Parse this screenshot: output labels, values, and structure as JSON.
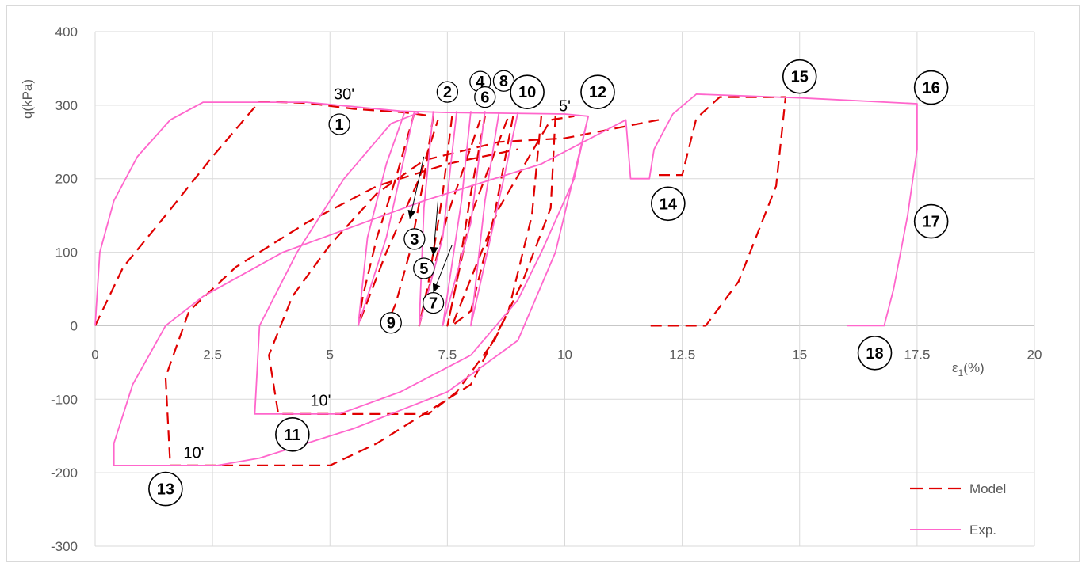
{
  "chart_data": {
    "type": "line",
    "title": "",
    "xlabel": "ε1(%)",
    "ylabel": "q(kPa)",
    "xlim": [
      0,
      20
    ],
    "ylim": [
      -300,
      400
    ],
    "x_ticks": [
      0,
      2.5,
      5,
      7.5,
      10,
      12.5,
      15,
      17.5,
      20
    ],
    "x_tick_labels": [
      "0",
      "2.5",
      "5",
      "7.5",
      "10",
      "12.5",
      "15",
      "17.5",
      "20"
    ],
    "y_ticks": [
      -300,
      -200,
      -100,
      0,
      100,
      200,
      300,
      400
    ],
    "y_tick_labels": [
      "-300",
      "-200",
      "-100",
      "0",
      "100",
      "200",
      "300",
      "400"
    ],
    "grid": true,
    "legend_position": "bottom-right",
    "series": [
      {
        "name": "Model",
        "color": "#e00000",
        "dash": "dashed",
        "segments": [
          [
            [
              0,
              0
            ],
            [
              0.6,
              80
            ],
            [
              1.5,
              150
            ],
            [
              2.5,
              230
            ],
            [
              3.5,
              305
            ],
            [
              4.5,
              303
            ],
            [
              5.5,
              295
            ],
            [
              6.6,
              290
            ],
            [
              7.2,
              285
            ]
          ],
          [
            [
              6.8,
              290
            ],
            [
              6.4,
              200
            ],
            [
              6.0,
              120
            ],
            [
              5.7,
              40
            ],
            [
              5.6,
              0
            ],
            [
              6.2,
              100
            ],
            [
              6.9,
              200
            ],
            [
              7.3,
              280
            ]
          ],
          [
            [
              7.2,
              285
            ],
            [
              7.0,
              200
            ],
            [
              6.7,
              100
            ],
            [
              6.4,
              30
            ],
            [
              6.2,
              0
            ]
          ],
          [
            [
              7.6,
              285
            ],
            [
              7.4,
              180
            ],
            [
              7.1,
              60
            ],
            [
              6.9,
              0
            ],
            [
              7.5,
              150
            ],
            [
              8.2,
              280
            ]
          ],
          [
            [
              8.3,
              285
            ],
            [
              8.0,
              180
            ],
            [
              7.7,
              60
            ],
            [
              7.5,
              0
            ],
            [
              8.0,
              150
            ],
            [
              8.8,
              285
            ]
          ],
          [
            [
              8.9,
              285
            ],
            [
              8.5,
              150
            ],
            [
              8.0,
              20
            ],
            [
              7.6,
              0
            ],
            [
              8.6,
              160
            ],
            [
              9.7,
              280
            ],
            [
              10.2,
              285
            ]
          ],
          [
            [
              9.8,
              285
            ],
            [
              9.7,
              160
            ],
            [
              9.1,
              60
            ],
            [
              8.5,
              -20
            ],
            [
              7.7,
              -90
            ],
            [
              7.1,
              -120
            ],
            [
              6.5,
              -120
            ],
            [
              3.9,
              -120
            ],
            [
              3.7,
              -40
            ],
            [
              4.2,
              40
            ],
            [
              5.0,
              110
            ],
            [
              6.0,
              180
            ],
            [
              7.0,
              225
            ],
            [
              8.6,
              250
            ],
            [
              10.0,
              255
            ],
            [
              12.0,
              280
            ]
          ],
          [
            [
              9.5,
              285
            ],
            [
              9.3,
              150
            ],
            [
              8.8,
              20
            ],
            [
              8.0,
              -80
            ],
            [
              7.0,
              -120
            ],
            [
              6.0,
              -160
            ],
            [
              5.0,
              -190
            ],
            [
              1.6,
              -190
            ],
            [
              1.5,
              -70
            ],
            [
              2.0,
              20
            ],
            [
              3.0,
              80
            ],
            [
              4.5,
              140
            ],
            [
              6.0,
              190
            ],
            [
              7.5,
              220
            ],
            [
              9.0,
              240
            ]
          ],
          [
            [
              12.0,
              205
            ],
            [
              12.5,
              205
            ],
            [
              12.5,
              205
            ],
            [
              12.8,
              282
            ],
            [
              13.3,
              311
            ],
            [
              14.7,
              311
            ],
            [
              14.5,
              190
            ],
            [
              13.7,
              60
            ],
            [
              13.0,
              0
            ],
            [
              11.8,
              0
            ]
          ]
        ]
      },
      {
        "name": "Exp.",
        "color": "#ff66cc",
        "dash": "solid",
        "segments": [
          [
            [
              0,
              0
            ],
            [
              0.1,
              100
            ],
            [
              0.4,
              170
            ],
            [
              0.9,
              230
            ],
            [
              1.6,
              280
            ],
            [
              2.3,
              304
            ],
            [
              4.5,
              304
            ],
            [
              6.5,
              292
            ],
            [
              7.5,
              290
            ],
            [
              10.0,
              288
            ],
            [
              10.5,
              285
            ],
            [
              10.2,
              200
            ],
            [
              9.5,
              100
            ],
            [
              9.0,
              35
            ],
            [
              8.0,
              -40
            ],
            [
              6.5,
              -90
            ],
            [
              5.2,
              -120
            ],
            [
              3.4,
              -120
            ],
            [
              3.5,
              0
            ],
            [
              4.3,
              100
            ],
            [
              5.3,
              200
            ],
            [
              6.3,
              275
            ],
            [
              6.9,
              290
            ]
          ],
          [
            [
              6.6,
              292
            ],
            [
              6.2,
              220
            ],
            [
              5.8,
              120
            ],
            [
              5.6,
              0
            ],
            [
              6.2,
              120
            ],
            [
              6.8,
              292
            ]
          ],
          [
            [
              7.2,
              292
            ],
            [
              7.0,
              160
            ],
            [
              6.9,
              0
            ],
            [
              7.4,
              120
            ],
            [
              7.7,
              292
            ]
          ],
          [
            [
              8.0,
              292
            ],
            [
              7.8,
              170
            ],
            [
              7.4,
              0
            ],
            [
              8.0,
              140
            ],
            [
              8.3,
              292
            ]
          ],
          [
            [
              8.6,
              290
            ],
            [
              8.3,
              170
            ],
            [
              8.0,
              0
            ],
            [
              8.7,
              200
            ],
            [
              9.0,
              290
            ]
          ],
          [
            [
              10.5,
              285
            ],
            [
              9.8,
              100
            ],
            [
              9.0,
              -20
            ],
            [
              7.5,
              -90
            ],
            [
              5.5,
              -140
            ],
            [
              3.5,
              -180
            ],
            [
              2.6,
              -190
            ],
            [
              0.4,
              -190
            ],
            [
              0.4,
              -160
            ],
            [
              0.8,
              -80
            ],
            [
              1.5,
              0
            ],
            [
              2.3,
              40
            ],
            [
              4.0,
              100
            ],
            [
              7.0,
              170
            ],
            [
              9.5,
              220
            ],
            [
              11.3,
              280
            ],
            [
              11.4,
              200
            ],
            [
              11.8,
              200
            ],
            [
              11.9,
              240
            ],
            [
              12.3,
              288
            ],
            [
              12.8,
              315
            ],
            [
              15.0,
              310
            ],
            [
              17.5,
              302
            ],
            [
              17.5,
              240
            ],
            [
              17.3,
              150
            ],
            [
              17.0,
              50
            ],
            [
              16.8,
              0
            ],
            [
              16.0,
              0
            ]
          ]
        ]
      }
    ],
    "annotations": [
      {
        "text": "30'",
        "x": 5.3,
        "y": 308
      },
      {
        "text": "5'",
        "x": 10.0,
        "y": 292
      },
      {
        "text": "10'",
        "x": 4.8,
        "y": -109
      },
      {
        "text": "10'",
        "x": 2.1,
        "y": -180
      }
    ],
    "markers": [
      {
        "label": "1",
        "x": 5.2,
        "y": 274
      },
      {
        "label": "2",
        "x": 7.5,
        "y": 318
      },
      {
        "label": "3",
        "x": 6.8,
        "y": 118
      },
      {
        "label": "4",
        "x": 8.2,
        "y": 332
      },
      {
        "label": "5",
        "x": 7.0,
        "y": 78
      },
      {
        "label": "6",
        "x": 8.3,
        "y": 311
      },
      {
        "label": "7",
        "x": 7.2,
        "y": 31
      },
      {
        "label": "8",
        "x": 8.7,
        "y": 333
      },
      {
        "label": "9",
        "x": 6.3,
        "y": 4
      },
      {
        "label": "10",
        "x": 9.2,
        "y": 318
      },
      {
        "label": "11",
        "x": 4.2,
        "y": -148
      },
      {
        "label": "12",
        "x": 10.7,
        "y": 318
      },
      {
        "label": "13",
        "x": 1.5,
        "y": -222
      },
      {
        "label": "14",
        "x": 12.2,
        "y": 166
      },
      {
        "label": "15",
        "x": 15.0,
        "y": 339
      },
      {
        "label": "16",
        "x": 17.8,
        "y": 324
      },
      {
        "label": "17",
        "x": 17.8,
        "y": 142
      },
      {
        "label": "18",
        "x": 16.6,
        "y": -37
      }
    ],
    "arrows": [
      {
        "from": [
          7.0,
          230
        ],
        "to": [
          6.7,
          145
        ]
      },
      {
        "from": [
          7.3,
          170
        ],
        "to": [
          7.2,
          95
        ]
      },
      {
        "from": [
          7.6,
          110
        ],
        "to": [
          7.2,
          45
        ]
      }
    ]
  },
  "legend": {
    "model_label": "Model",
    "exp_label": "Exp."
  }
}
